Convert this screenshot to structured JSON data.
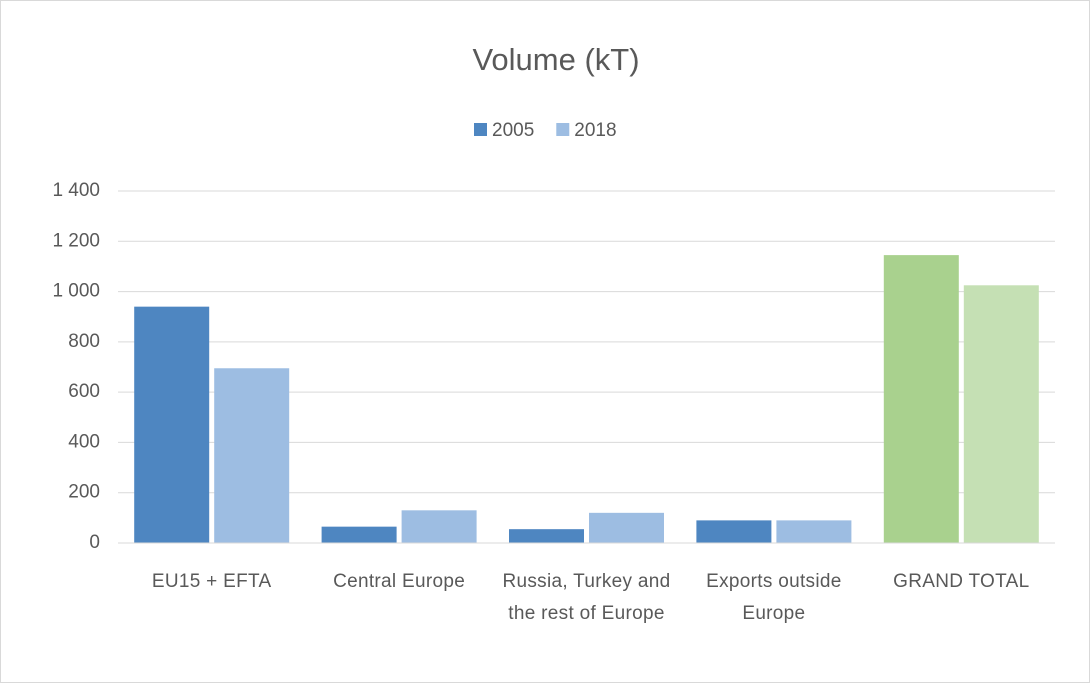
{
  "chart_data": {
    "type": "bar",
    "title": "Volume (kT)",
    "categories": [
      "EU15 + EFTA",
      "Central Europe",
      "Russia, Turkey and the rest of Europe",
      "Exports outside Europe",
      "GRAND TOTAL"
    ],
    "series": [
      {
        "name": "2005",
        "color": "#4e86c1",
        "colors": [
          "#4e86c1",
          "#4e86c1",
          "#4e86c1",
          "#4e86c1",
          "#a9d18e"
        ],
        "values": [
          940,
          65,
          55,
          90,
          1145
        ]
      },
      {
        "name": "2018",
        "color": "#9dbde2",
        "colors": [
          "#9dbde2",
          "#9dbde2",
          "#9dbde2",
          "#9dbde2",
          "#c5e0b4"
        ],
        "values": [
          695,
          130,
          120,
          90,
          1025
        ]
      }
    ],
    "ylim": [
      0,
      1400
    ],
    "yticks": [
      0,
      200,
      400,
      600,
      800,
      {
        "value": 1000,
        "label": "1 000"
      },
      {
        "value": 1200,
        "label": "1 200"
      },
      {
        "value": 1400,
        "label": "1 400"
      }
    ],
    "grid": true,
    "legend": "top"
  }
}
